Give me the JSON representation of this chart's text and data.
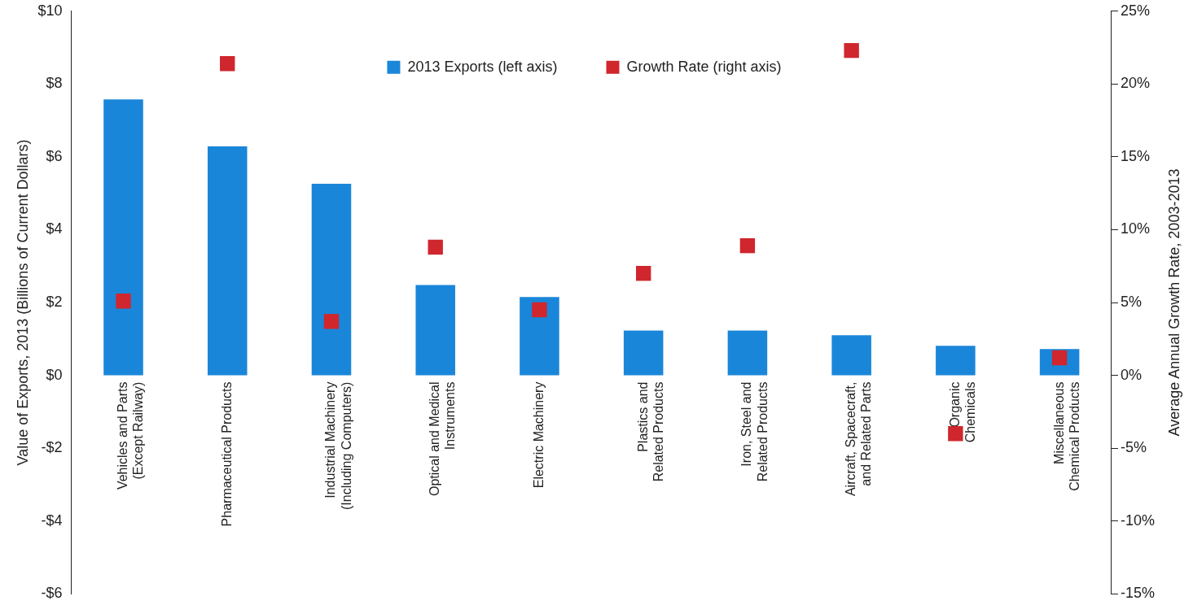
{
  "chart_data": {
    "type": "bar",
    "categories": [
      "Vehicles and Parts\n(Except Railway)",
      "Pharmaceutical Products",
      "Industrial Machinery\n(Including Computers)",
      "Optical and Medical\nInstruments",
      "Electric Machinery",
      "Plastics and\nRelated Products",
      "Iron, Steel and\nRelated Products",
      "Aircraft, Spacecraft,\nand Related Parts",
      "Organic\nChemicals",
      "Miscellaneous\nChemical Products"
    ],
    "series": [
      {
        "name": "2013 Exports (left axis)",
        "type": "bar",
        "color": "#1a86d9",
        "values": [
          7.58,
          6.29,
          5.26,
          2.48,
          2.15,
          1.23,
          1.23,
          1.1,
          0.81,
          0.72
        ]
      },
      {
        "name": "Growth Rate (right axis)",
        "type": "scatter",
        "axis": "y2",
        "color": "#d0262d",
        "values": [
          5.1,
          21.4,
          3.7,
          8.8,
          4.5,
          7.0,
          8.9,
          22.3,
          -4.0,
          1.2
        ]
      }
    ],
    "ylabel": "Value of Exports, 2013 (Billions of Current Dollars)",
    "y2label": "Average Annual Growth Rate, 2003-2013",
    "ylim": [
      -6,
      10
    ],
    "yticks": [
      {
        "value": -6,
        "label": "-$6"
      },
      {
        "value": -4,
        "label": "-$4"
      },
      {
        "value": -2,
        "label": "-$2"
      },
      {
        "value": 0,
        "label": "$0"
      },
      {
        "value": 2,
        "label": "$2"
      },
      {
        "value": 4,
        "label": "$4"
      },
      {
        "value": 6,
        "label": "$6"
      },
      {
        "value": 8,
        "label": "$8"
      },
      {
        "value": 10,
        "label": "$10"
      }
    ],
    "y2lim": [
      -15,
      25
    ],
    "y2ticks": [
      {
        "value": -15,
        "label": "-15%"
      },
      {
        "value": -10,
        "label": "-10%"
      },
      {
        "value": -5,
        "label": "-5%"
      },
      {
        "value": 0,
        "label": "0%"
      },
      {
        "value": 5,
        "label": "5%"
      },
      {
        "value": 10,
        "label": "10%"
      },
      {
        "value": 15,
        "label": "15%"
      },
      {
        "value": 20,
        "label": "20%"
      },
      {
        "value": 25,
        "label": "25%"
      }
    ],
    "legend": "top",
    "grid": false,
    "marker": "square"
  }
}
